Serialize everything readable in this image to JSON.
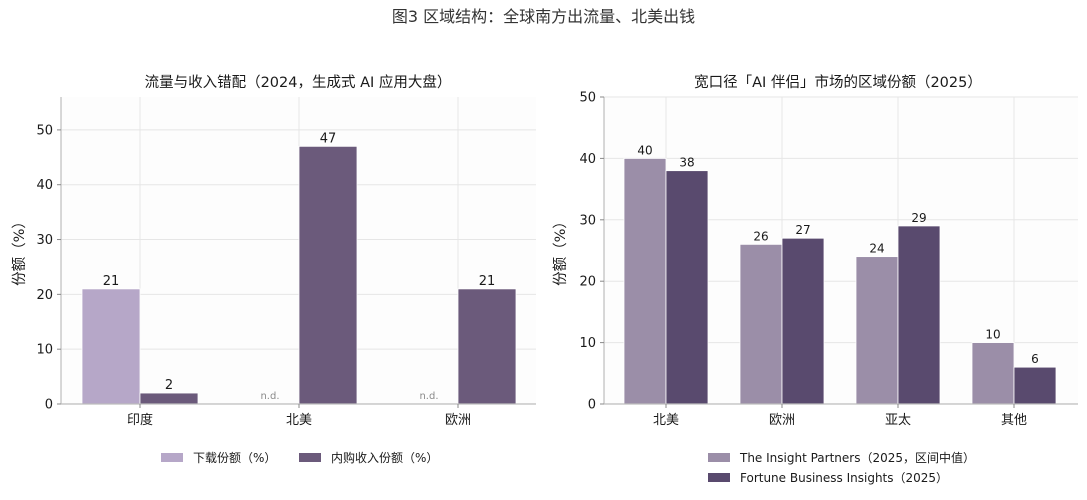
{
  "figure_title": "图3  区域结构：全球南方出流量、北美出钱",
  "colors": {
    "download": "#b6a7c8",
    "revenue": "#6b5a7b",
    "insight": "#9b8ea8",
    "fortune": "#594a6e",
    "plot_bg": "#fdfdfd"
  },
  "chart_data": [
    {
      "type": "bar",
      "title": "流量与收入错配（2024，生成式 AI 应用大盘）",
      "ylabel": "份额（%）",
      "ylim": [
        0,
        56
      ],
      "yticks": [
        0,
        10,
        20,
        30,
        40,
        50
      ],
      "categories": [
        "印度",
        "北美",
        "欧洲"
      ],
      "series": [
        {
          "name": "下载份额（%）",
          "values": [
            21,
            null,
            null
          ],
          "missing_label": "n.d."
        },
        {
          "name": "内购收入份额（%）",
          "values": [
            2,
            47,
            21
          ]
        }
      ],
      "legend": "bottom-center",
      "grid": true
    },
    {
      "type": "bar",
      "title": "宽口径「AI 伴侣」市场的区域份额（2025）",
      "ylabel": "份额（%）",
      "ylim": [
        0,
        50
      ],
      "yticks": [
        0,
        10,
        20,
        30,
        40,
        50
      ],
      "categories": [
        "北美",
        "欧洲",
        "亚太",
        "其他"
      ],
      "series": [
        {
          "name": "The Insight Partners（2025，区间中值）",
          "values": [
            40,
            26,
            24,
            10
          ]
        },
        {
          "name": "Fortune Business Insights（2025）",
          "values": [
            38,
            27,
            29,
            6
          ]
        }
      ],
      "legend": "bottom-center",
      "grid": true
    }
  ]
}
